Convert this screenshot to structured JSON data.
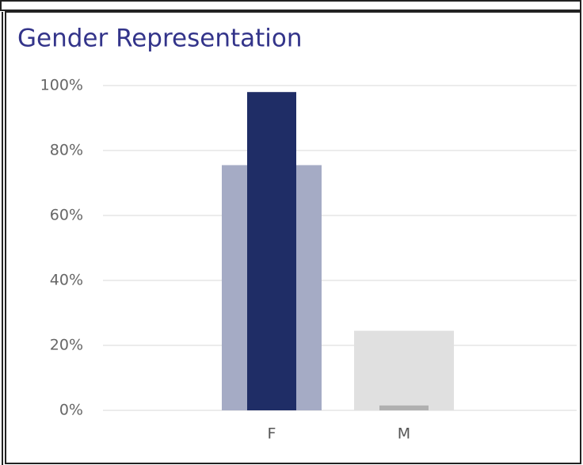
{
  "chart_data": {
    "type": "bar",
    "title": "Gender Representation",
    "categories": [
      "F",
      "M"
    ],
    "series": [
      {
        "colors": [
          "#a5abc5",
          "#e0e0e0"
        ],
        "values": [
          75.5,
          24.5
        ]
      },
      {
        "colors": [
          "#1f2d66",
          "#b0b0b0"
        ],
        "values": [
          98,
          1.5
        ]
      }
    ],
    "ylim": [
      0,
      100
    ],
    "yticks": [
      {
        "value": 0,
        "label": "0%"
      },
      {
        "value": 20,
        "label": "20%"
      },
      {
        "value": 40,
        "label": "40%"
      },
      {
        "value": 60,
        "label": "60%"
      },
      {
        "value": 80,
        "label": "80%"
      },
      {
        "value": 100,
        "label": "100%"
      }
    ],
    "grid": true
  }
}
